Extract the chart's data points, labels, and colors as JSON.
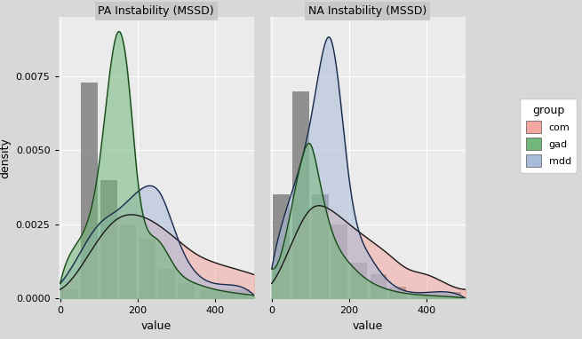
{
  "title_left": "PA Instability (MSSD)",
  "title_right": "NA Instability (MSSD)",
  "xlabel": "value",
  "ylabel": "density",
  "groups": [
    "com",
    "gad",
    "mdd"
  ],
  "colors": {
    "com": "#F4A6A0",
    "gad": "#72B87A",
    "mdd": "#A8BBDA"
  },
  "line_colors": {
    "com": "#1a1a1a",
    "gad": "#1a4a1a",
    "mdd": "#1a2a4a"
  },
  "fill_alpha": 0.55,
  "line_alpha": 1.0,
  "fig_background": "#D8D8D8",
  "panel_background": "#EBEBEB",
  "strip_background": "#C8C8C8",
  "ylim": [
    0,
    0.0095
  ],
  "xlim": [
    -5,
    500
  ],
  "yticks": [
    0.0,
    0.0025,
    0.005,
    0.0075
  ],
  "xticks": [
    0,
    200,
    400
  ],
  "xtick_labels": [
    "0",
    "200",
    "400"
  ],
  "legend_title": "group",
  "hist_color": "#808080",
  "hist_alpha": 0.85,
  "pa_hist_bins": [
    0,
    50,
    100,
    150,
    200,
    250,
    300,
    350,
    500
  ],
  "na_hist_bins": [
    0,
    50,
    100,
    150,
    200,
    250,
    300,
    350,
    500
  ],
  "pa_kde": {
    "com": {
      "x": [
        0,
        50,
        100,
        150,
        200,
        250,
        300,
        350,
        400,
        450,
        500
      ],
      "y": [
        0.0003,
        0.001,
        0.002,
        0.0027,
        0.0028,
        0.0025,
        0.002,
        0.0015,
        0.0012,
        0.001,
        0.0008
      ]
    },
    "gad": {
      "x": [
        0,
        50,
        100,
        150,
        175,
        200,
        250,
        300,
        350,
        400,
        500
      ],
      "y": [
        0.0005,
        0.002,
        0.0045,
        0.009,
        0.0075,
        0.004,
        0.002,
        0.001,
        0.0005,
        0.0003,
        0.0001
      ]
    },
    "mdd": {
      "x": [
        0,
        50,
        100,
        150,
        200,
        230,
        260,
        290,
        320,
        400,
        500
      ],
      "y": [
        0.0005,
        0.0015,
        0.0025,
        0.003,
        0.0036,
        0.0038,
        0.0035,
        0.0025,
        0.0015,
        0.0005,
        0.0001
      ]
    }
  },
  "na_kde": {
    "com": {
      "x": [
        0,
        50,
        100,
        150,
        200,
        250,
        300,
        350,
        400,
        450,
        500
      ],
      "y": [
        0.0005,
        0.0018,
        0.003,
        0.003,
        0.0025,
        0.002,
        0.0015,
        0.001,
        0.0008,
        0.0005,
        0.0003
      ]
    },
    "gad": {
      "x": [
        0,
        50,
        80,
        100,
        120,
        150,
        200,
        250,
        300,
        400,
        500
      ],
      "y": [
        0.001,
        0.003,
        0.0048,
        0.0052,
        0.0042,
        0.0025,
        0.0012,
        0.0006,
        0.0003,
        0.0001,
        0.0
      ]
    },
    "mdd": {
      "x": [
        0,
        50,
        100,
        130,
        150,
        170,
        200,
        250,
        300,
        400,
        500
      ],
      "y": [
        0.001,
        0.0035,
        0.006,
        0.0082,
        0.0088,
        0.0075,
        0.004,
        0.0015,
        0.0006,
        0.0002,
        0.0
      ]
    }
  },
  "pa_hist_heights": [
    0.0003,
    0.0073,
    0.004,
    0.0025,
    0.002,
    0.001,
    0.0005,
    0.0003
  ],
  "na_hist_heights": [
    0.0035,
    0.007,
    0.0035,
    0.0025,
    0.0012,
    0.0008,
    0.0004,
    0.0002
  ]
}
